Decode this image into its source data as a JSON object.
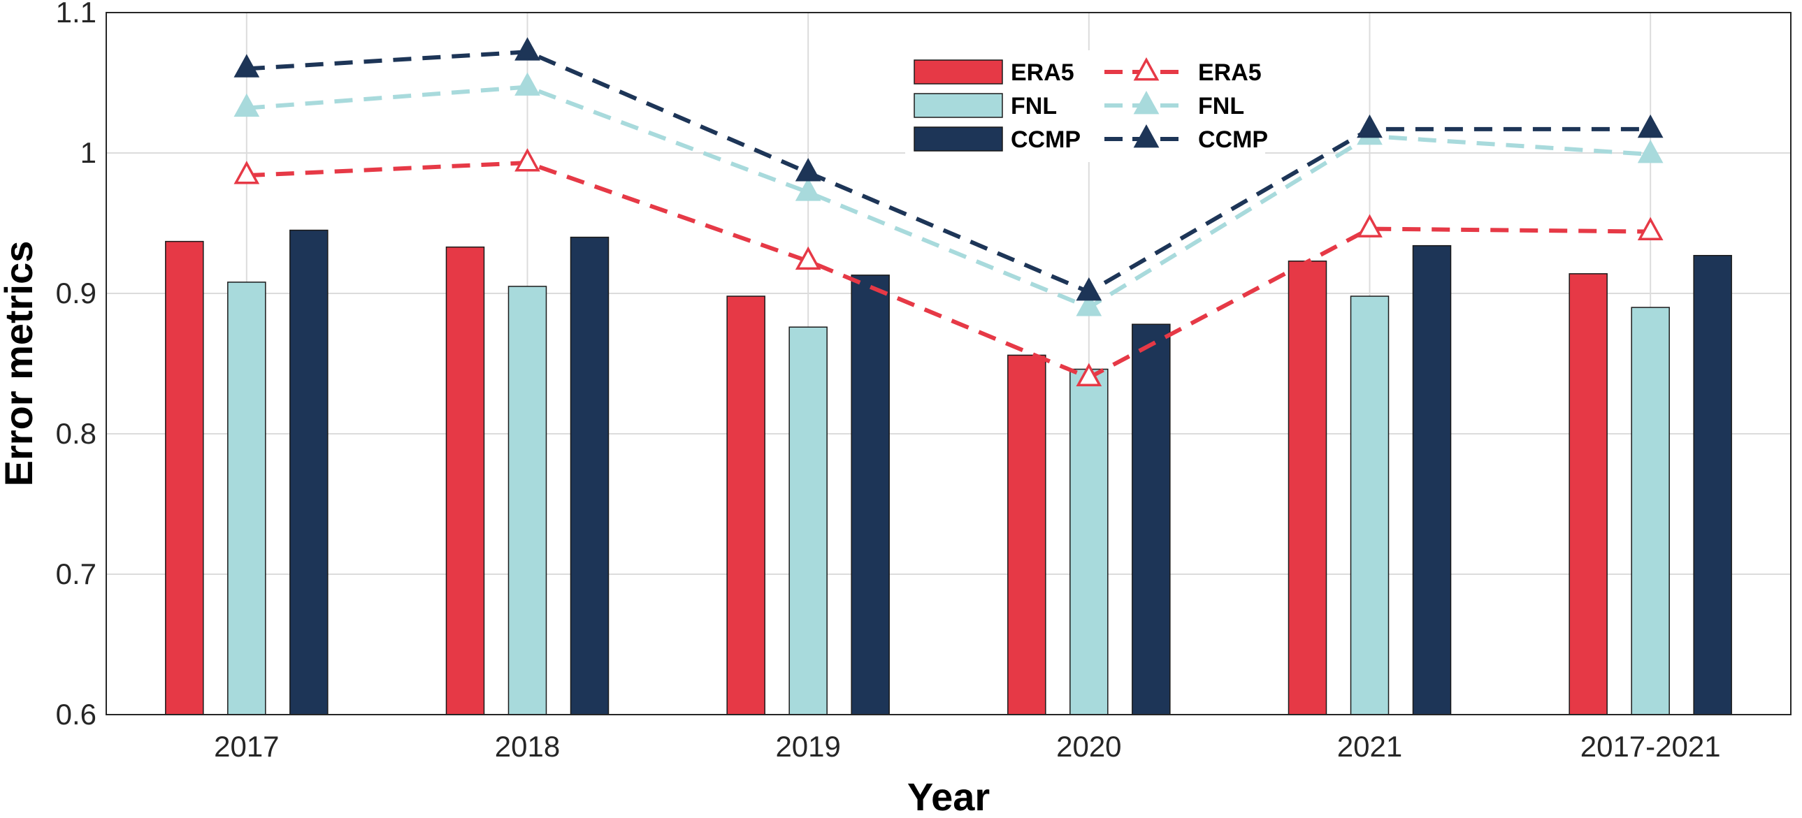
{
  "chart_data": {
    "type": "bar",
    "title": "",
    "xlabel": "Year",
    "ylabel": "Error metrics",
    "ylim": [
      0.6,
      1.1
    ],
    "yticks": [
      "0.6",
      "0.7",
      "0.8",
      "0.9",
      "1",
      "1.1"
    ],
    "ytick_values": [
      0.6,
      0.7,
      0.8,
      0.9,
      1.0,
      1.1
    ],
    "grid": true,
    "categories": [
      "2017",
      "2018",
      "2019",
      "2020",
      "2021",
      "2017-2021"
    ],
    "bar_series": [
      {
        "name": "ERA5",
        "color": "#E63946",
        "values": [
          0.937,
          0.933,
          0.898,
          0.856,
          0.923,
          0.914
        ]
      },
      {
        "name": "FNL",
        "color": "#A8DADC",
        "values": [
          0.908,
          0.905,
          0.876,
          0.846,
          0.898,
          0.89
        ]
      },
      {
        "name": "CCMP",
        "color": "#1D3557",
        "values": [
          0.945,
          0.94,
          0.913,
          0.878,
          0.934,
          0.927
        ]
      }
    ],
    "line_series": [
      {
        "name": "ERA5",
        "color": "#E63946",
        "values": [
          0.984,
          0.993,
          0.923,
          0.84,
          0.946,
          0.944
        ]
      },
      {
        "name": "FNL",
        "color": "#A8DADC",
        "values": [
          1.032,
          1.047,
          0.972,
          0.89,
          1.012,
          0.999
        ]
      },
      {
        "name": "CCMP",
        "color": "#1D3557",
        "values": [
          1.06,
          1.072,
          0.986,
          0.901,
          1.017,
          1.017
        ]
      }
    ],
    "legend_position": "top-center"
  }
}
